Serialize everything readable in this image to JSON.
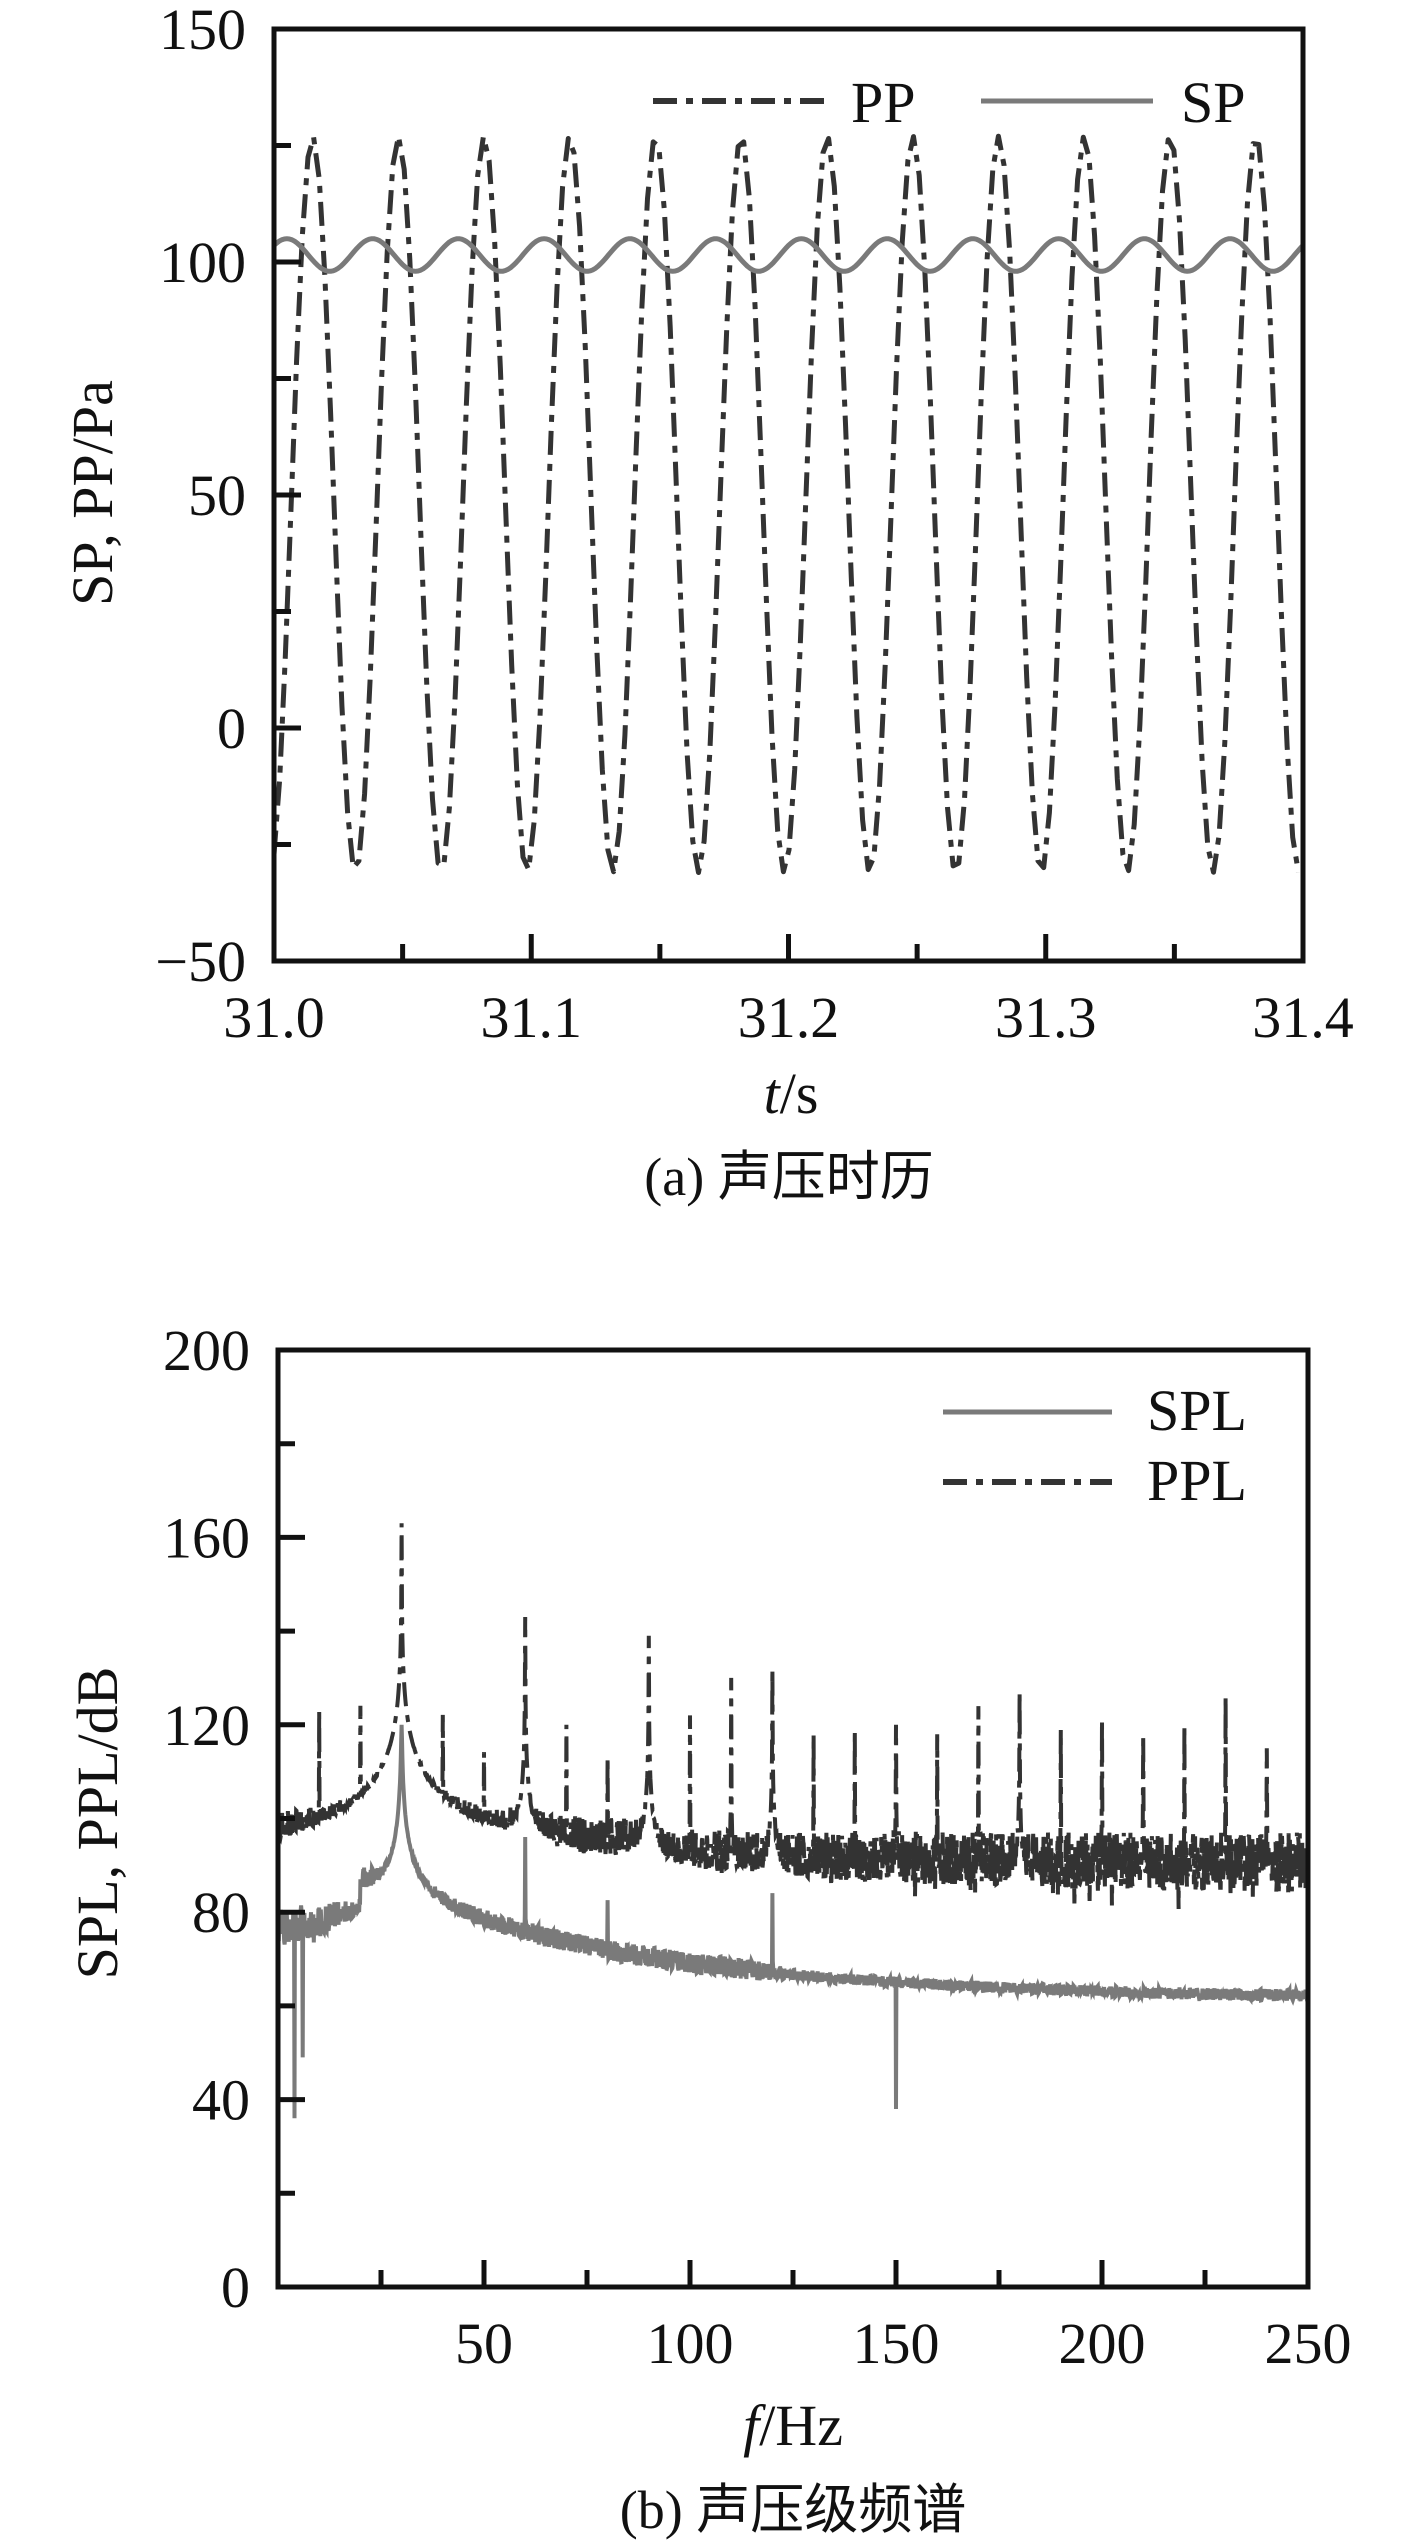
{
  "colors": {
    "pp": "#333333",
    "sp": "#7a7a7a",
    "axis": "#111111"
  },
  "chart_data": [
    {
      "type": "line",
      "caption": "(a) 声压时历",
      "xlabel_italic": "t",
      "xlabel_rest": "/s",
      "ylabel": "SP, PP/Pa",
      "xlim": [
        31.0,
        31.4
      ],
      "ylim": [
        -50,
        150
      ],
      "xticks": [
        31.0,
        31.1,
        31.2,
        31.3,
        31.4
      ],
      "xtick_labels": [
        "31.0",
        "31.1",
        "31.2",
        "31.3",
        "31.4"
      ],
      "xminor_step": 0.05,
      "yticks": [
        -50,
        0,
        50,
        100,
        150
      ],
      "ytick_labels": [
        "−50",
        "0",
        "50",
        "100",
        "150"
      ],
      "yminor_step": 25,
      "grid": false,
      "legend": {
        "placement": "top-right",
        "entries": [
          "PP",
          "SP"
        ]
      },
      "series": [
        {
          "name": "PP",
          "style": "dash-dot",
          "model": "sine",
          "mean": 48,
          "amplitude": 79,
          "frequency_hz": 30,
          "peak_time": 31.015,
          "max": 127,
          "min": -31
        },
        {
          "name": "SP",
          "style": "solid",
          "model": "sine",
          "mean": 101.5,
          "amplitude": 3.5,
          "frequency_hz": 30,
          "peak_time": 31.005,
          "max": 105,
          "min": 98
        }
      ]
    },
    {
      "type": "line",
      "caption": "(b) 声压级频谱",
      "xlabel_italic": "f",
      "xlabel_rest": "/Hz",
      "ylabel": "SPL, PPL/dB",
      "xlim": [
        0,
        250
      ],
      "ylim": [
        0,
        200
      ],
      "xticks": [
        50,
        100,
        150,
        200,
        250
      ],
      "xtick_labels": [
        "50",
        "100",
        "150",
        "200",
        "250"
      ],
      "xminor_step": 25,
      "yticks": [
        0,
        40,
        80,
        120,
        160,
        200
      ],
      "ytick_labels": [
        "0",
        "40",
        "80",
        "120",
        "160",
        "200"
      ],
      "yminor_step": 20,
      "grid": false,
      "legend": {
        "placement": "top-right",
        "entries": [
          "SPL",
          "PPL"
        ]
      },
      "series": [
        {
          "name": "SPL",
          "style": "solid",
          "baseline_low_f": 75,
          "baseline_at_40hz": 80,
          "baseline_at_250hz": 61,
          "peaks": [
            [
              30,
              120
            ],
            [
              40,
              80
            ],
            [
              60,
              96
            ],
            [
              80,
              82
            ],
            [
              120,
              84
            ]
          ],
          "dips": [
            [
              4,
              36
            ],
            [
              6,
              49
            ],
            [
              150,
              38
            ]
          ]
        },
        {
          "name": "PPL",
          "style": "dash-dot",
          "baseline": 90,
          "peaks": [
            [
              10,
              123
            ],
            [
              20,
              124
            ],
            [
              30,
              163
            ],
            [
              40,
              122
            ],
            [
              50,
              114
            ],
            [
              60,
              143
            ],
            [
              70,
              120
            ],
            [
              80,
              113
            ],
            [
              90,
              139
            ],
            [
              100,
              122
            ],
            [
              110,
              130
            ],
            [
              120,
              132
            ],
            [
              130,
              118
            ],
            [
              140,
              119
            ],
            [
              150,
              120
            ],
            [
              160,
              118
            ],
            [
              170,
              124
            ],
            [
              180,
              127
            ],
            [
              190,
              119
            ],
            [
              200,
              121
            ],
            [
              210,
              118
            ],
            [
              220,
              120
            ],
            [
              230,
              126
            ],
            [
              240,
              115
            ]
          ]
        }
      ]
    }
  ]
}
